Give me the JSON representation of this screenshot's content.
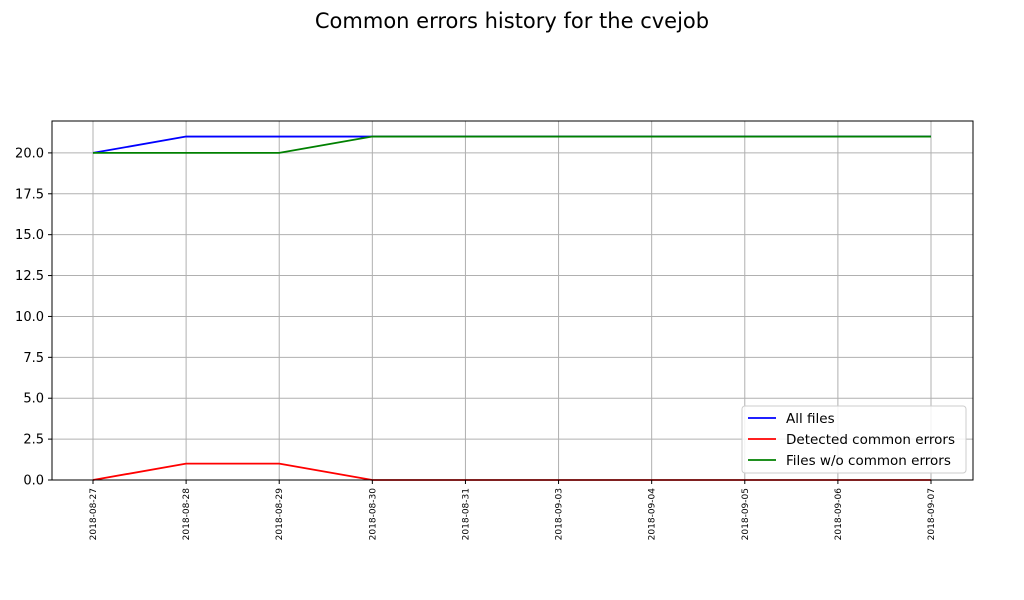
{
  "chart_data": {
    "type": "line",
    "title": "Common errors history for the cvejob",
    "xlabel": "",
    "ylabel": "",
    "categories": [
      "2018-08-27",
      "2018-08-28",
      "2018-08-29",
      "2018-08-30",
      "2018-08-31",
      "2018-09-03",
      "2018-09-04",
      "2018-09-05",
      "2018-09-06",
      "2018-09-07"
    ],
    "ylim": [
      0,
      21.95
    ],
    "yticks": [
      0.0,
      2.5,
      5.0,
      7.5,
      10.0,
      12.5,
      15.0,
      17.5,
      20.0
    ],
    "ytick_labels": [
      "0.0",
      "2.5",
      "5.0",
      "7.5",
      "10.0",
      "12.5",
      "15.0",
      "17.5",
      "20.0"
    ],
    "grid": true,
    "legend_position": "lower right",
    "series": [
      {
        "name": "All files",
        "color": "#0000ff",
        "values": [
          20,
          21,
          21,
          21,
          21,
          21,
          21,
          21,
          21,
          21
        ]
      },
      {
        "name": "Detected common errors",
        "color": "#ff0000",
        "values": [
          0,
          1,
          1,
          0,
          0,
          0,
          0,
          0,
          0,
          0
        ]
      },
      {
        "name": "Files w/o common errors",
        "color": "#008000",
        "values": [
          20,
          20,
          20,
          21,
          21,
          21,
          21,
          21,
          21,
          21
        ]
      }
    ]
  }
}
